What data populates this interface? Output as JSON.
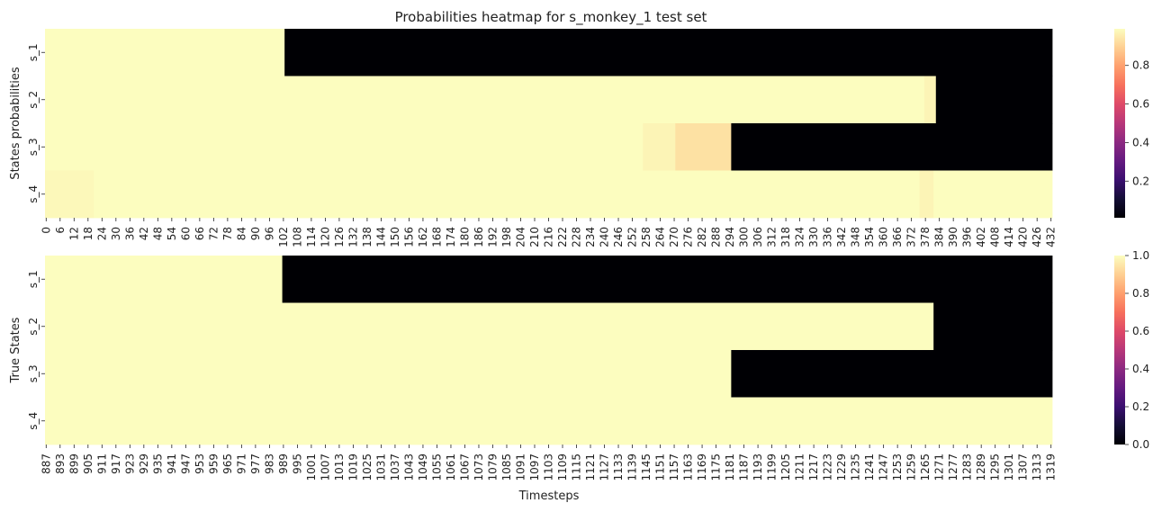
{
  "chart_data": [
    {
      "type": "heatmap",
      "title": "Probabilities heatmap for s_monkey_1 test set",
      "ylabel": "States probabilities",
      "xlabel": "",
      "rows": [
        "s_1",
        "s_2",
        "s_3",
        "s_4"
      ],
      "x_start": 0,
      "x_count": 433,
      "x_tick_step": 6,
      "x_tick_labels": [
        "0",
        "6",
        "12",
        "18",
        "24",
        "30",
        "36",
        "42",
        "48",
        "54",
        "60",
        "66",
        "72",
        "78",
        "84",
        "90",
        "96",
        "102",
        "108",
        "114",
        "120",
        "126",
        "132",
        "138",
        "144",
        "150",
        "156",
        "162",
        "168",
        "174",
        "180",
        "186",
        "192",
        "198",
        "204",
        "210",
        "216",
        "222",
        "228",
        "234",
        "240",
        "246",
        "252",
        "258",
        "264",
        "270",
        "276",
        "282",
        "288",
        "294",
        "300",
        "306",
        "312",
        "318",
        "324",
        "330",
        "336",
        "342",
        "348",
        "354",
        "360",
        "366",
        "372",
        "378",
        "384",
        "390",
        "396",
        "402",
        "408",
        "414",
        "420",
        "426",
        "432"
      ],
      "segments": [
        [
          {
            "from": 0,
            "to": 102,
            "value": 0.99
          },
          {
            "from": 103,
            "to": 432,
            "value": 0.0
          }
        ],
        [
          {
            "from": 0,
            "to": 377,
            "value": 0.99
          },
          {
            "from": 378,
            "to": 382,
            "value": 0.97
          },
          {
            "from": 383,
            "to": 432,
            "value": 0.0
          }
        ],
        [
          {
            "from": 0,
            "to": 256,
            "value": 0.99
          },
          {
            "from": 257,
            "to": 270,
            "value": 0.97
          },
          {
            "from": 271,
            "to": 294,
            "value": 0.93
          },
          {
            "from": 295,
            "to": 432,
            "value": 0.0
          }
        ],
        [
          {
            "from": 0,
            "to": 20,
            "value": 0.98
          },
          {
            "from": 21,
            "to": 375,
            "value": 0.99
          },
          {
            "from": 376,
            "to": 381,
            "value": 0.97
          },
          {
            "from": 382,
            "to": 432,
            "value": 0.99
          }
        ]
      ],
      "colorbar": {
        "cmap": "magma",
        "vmin": 0.01,
        "vmax": 0.99,
        "ticks": [
          "0.2",
          "0.4",
          "0.6",
          "0.8"
        ],
        "tick_values": [
          0.2,
          0.4,
          0.6,
          0.8
        ]
      }
    },
    {
      "type": "heatmap",
      "title": "",
      "ylabel": "True States",
      "xlabel": "Timesteps",
      "rows": [
        "s_1",
        "s_2",
        "s_3",
        "s_4"
      ],
      "x_start": 887,
      "x_count": 433,
      "x_tick_step": 6,
      "x_tick_labels": [
        "887",
        "893",
        "899",
        "905",
        "911",
        "917",
        "923",
        "929",
        "935",
        "941",
        "947",
        "953",
        "959",
        "965",
        "971",
        "977",
        "983",
        "989",
        "995",
        "1001",
        "1007",
        "1013",
        "1019",
        "1025",
        "1031",
        "1037",
        "1043",
        "1049",
        "1055",
        "1061",
        "1067",
        "1073",
        "1079",
        "1085",
        "1091",
        "1097",
        "1103",
        "1109",
        "1115",
        "1121",
        "1127",
        "1133",
        "1139",
        "1145",
        "1151",
        "1157",
        "1163",
        "1169",
        "1175",
        "1181",
        "1187",
        "1193",
        "1199",
        "1205",
        "1211",
        "1217",
        "1223",
        "1229",
        "1235",
        "1241",
        "1247",
        "1253",
        "1259",
        "1265",
        "1271",
        "1277",
        "1283",
        "1289",
        "1295",
        "1301",
        "1307",
        "1313",
        "1319"
      ],
      "segments": [
        [
          {
            "from": 887,
            "to": 988,
            "value": 1
          },
          {
            "from": 989,
            "to": 1319,
            "value": 0
          }
        ],
        [
          {
            "from": 887,
            "to": 1268,
            "value": 1
          },
          {
            "from": 1269,
            "to": 1319,
            "value": 0
          }
        ],
        [
          {
            "from": 887,
            "to": 1181,
            "value": 1
          },
          {
            "from": 1182,
            "to": 1319,
            "value": 0
          }
        ],
        [
          {
            "from": 887,
            "to": 1319,
            "value": 1
          }
        ]
      ],
      "colorbar": {
        "cmap": "magma",
        "vmin": 0.0,
        "vmax": 1.0,
        "ticks": [
          "0.0",
          "0.2",
          "0.4",
          "0.6",
          "0.8",
          "1.0"
        ],
        "tick_values": [
          0.0,
          0.2,
          0.4,
          0.6,
          0.8,
          1.0
        ]
      }
    }
  ]
}
